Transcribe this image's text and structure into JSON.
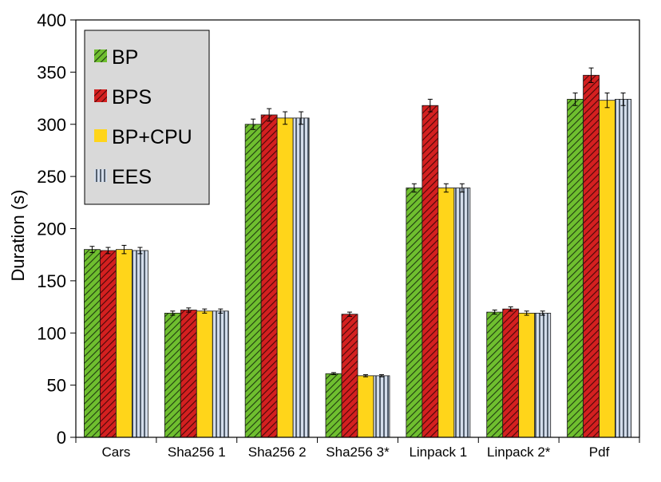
{
  "chart_data": {
    "type": "bar",
    "title": "",
    "xlabel": "",
    "ylabel": "Duration (s)",
    "ylim": [
      0,
      400
    ],
    "yticks": [
      0,
      50,
      100,
      150,
      200,
      250,
      300,
      350,
      400
    ],
    "categories": [
      "Cars",
      "Sha256 1",
      "Sha256 2",
      "Sha256 3*",
      "Linpack 1",
      "Linpack 2*",
      "Pdf"
    ],
    "legend_position": "top-left",
    "series": [
      {
        "name": "BP",
        "color": "#6fbf2f",
        "pattern": "diagonal-hatch",
        "values": [
          180,
          119,
          300,
          61,
          239,
          120,
          324
        ],
        "errors": [
          3,
          2,
          5,
          1,
          4,
          2,
          6
        ]
      },
      {
        "name": "BPS",
        "color": "#d42020",
        "pattern": "diagonal-hatch",
        "values": [
          179,
          122,
          309,
          118,
          318,
          123,
          347
        ],
        "errors": [
          3,
          2,
          6,
          2,
          6,
          2,
          7
        ]
      },
      {
        "name": "BP+CPU",
        "color": "#ffd51a",
        "pattern": "solid",
        "values": [
          180,
          121,
          306,
          59,
          239,
          119,
          323
        ],
        "errors": [
          4,
          2,
          6,
          1,
          4,
          2,
          7
        ]
      },
      {
        "name": "EES",
        "color": "#c7d2e0",
        "pattern": "vertical-stripes",
        "values": [
          179,
          121,
          306,
          59,
          239,
          119,
          324
        ],
        "errors": [
          3,
          2,
          6,
          1,
          4,
          2,
          6
        ]
      }
    ]
  }
}
